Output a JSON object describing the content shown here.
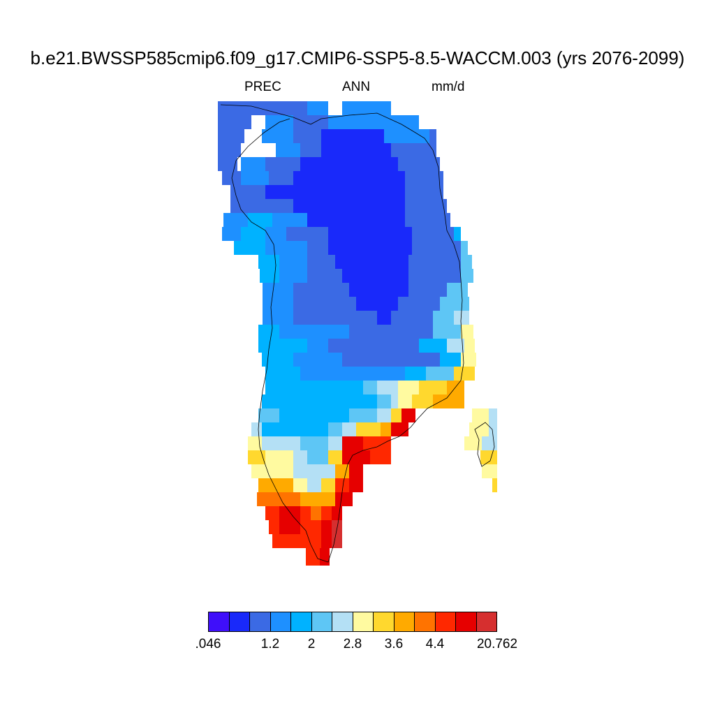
{
  "title": "b.e21.BWSSP585cmip6.f09_g17.CMIP6-SSP5-8.5-WACCM.003 (yrs 2076-2099)",
  "subtitle": {
    "variable": "PREC",
    "season": "ANN",
    "units": "mm/d"
  },
  "map": {
    "region": "Greenland",
    "field": "annual mean precipitation",
    "palette": [
      "#3f0ffa",
      "#1929fa",
      "#3b6ae4",
      "#1e90ff",
      "#00b2ff",
      "#5ec6f5",
      "#b4e0f5",
      "#fffaa0",
      "#ffd82e",
      "#ffaa00",
      "#ff7300",
      "#ff2800",
      "#e60000",
      "#d62f2f"
    ],
    "labels": [
      ".046",
      "1.2",
      "2",
      "2.8",
      "3.6",
      "4.4",
      "20.762"
    ],
    "pattern": "driest (.046–1.2 mm/d) over north-central interior; increases toward coasts; wettest (4.4–20.762 mm/d) along south-east coast"
  }
}
